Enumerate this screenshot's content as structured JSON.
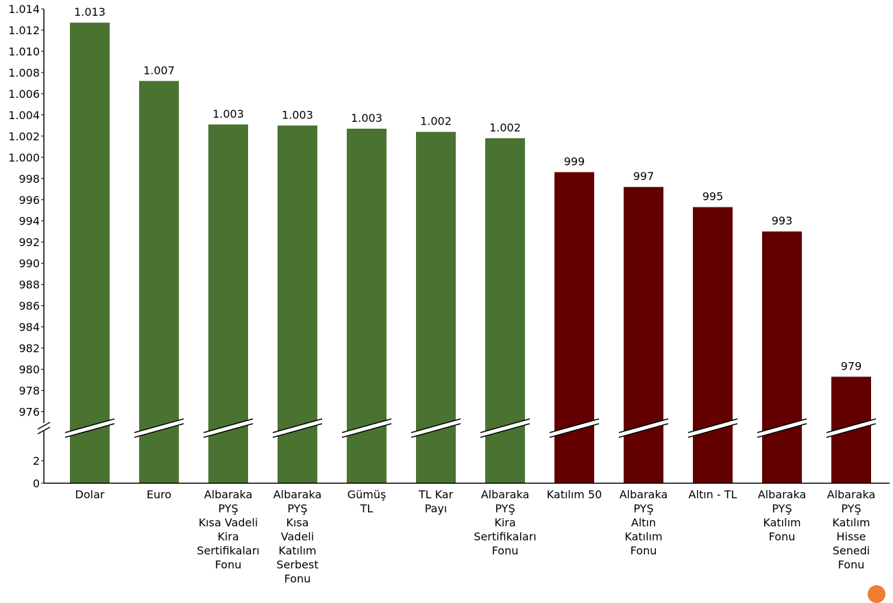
{
  "chart_data": {
    "type": "bar",
    "title": "",
    "xlabel": "",
    "ylabel": "",
    "axis_break": true,
    "ylim_lower": [
      0,
      4
    ],
    "ylim_upper": [
      975,
      1014
    ],
    "yticks_lower": [
      "0",
      "2"
    ],
    "yticks_upper": [
      "976",
      "978",
      "980",
      "982",
      "984",
      "986",
      "988",
      "990",
      "992",
      "994",
      "996",
      "998",
      "1.000",
      "1.002",
      "1.004",
      "1.006",
      "1.008",
      "1.010",
      "1.012",
      "1.014"
    ],
    "yticks_upper_values": [
      976,
      978,
      980,
      982,
      984,
      986,
      988,
      990,
      992,
      994,
      996,
      998,
      1000,
      1002,
      1004,
      1006,
      1008,
      1010,
      1012,
      1014
    ],
    "grid": false,
    "legend": "none",
    "categories": [
      [
        "Dolar"
      ],
      [
        "Euro"
      ],
      [
        "Albaraka",
        "PYŞ",
        "Kısa Vadeli",
        "Kira",
        "Sertifikaları",
        "Fonu"
      ],
      [
        "Albaraka",
        "PYŞ",
        "Kısa",
        "Vadeli",
        "Katılım",
        "Serbest",
        "Fonu"
      ],
      [
        "Gümüş",
        "TL"
      ],
      [
        "TL Kar",
        "Payı"
      ],
      [
        "Albaraka",
        "PYŞ",
        "Kira",
        "Sertifikaları",
        "Fonu"
      ],
      [
        "Katılım 50"
      ],
      [
        "Albaraka",
        "PYŞ",
        "Altın",
        "Katılım",
        "Fonu"
      ],
      [
        "Altın - TL"
      ],
      [
        "Albaraka",
        "PYŞ",
        "Katılım",
        "Fonu"
      ],
      [
        "Albaraka",
        "PYŞ",
        "Katılım",
        "Hisse",
        "Senedi",
        "Fonu"
      ]
    ],
    "values": [
      1012.7,
      1007.2,
      1003.1,
      1003.0,
      1002.7,
      1002.4,
      1001.8,
      998.6,
      997.2,
      995.3,
      993.0,
      979.3
    ],
    "data_labels": [
      "1.013",
      "1.007",
      "1.003",
      "1.003",
      "1.003",
      "1.002",
      "1.002",
      "999",
      "997",
      "995",
      "993",
      "979"
    ],
    "colors": {
      "positive": "#4a7332",
      "negative": "#620000",
      "axis": "#000000",
      "corner_marker": "#ed7d31"
    },
    "color_threshold": 1000
  }
}
